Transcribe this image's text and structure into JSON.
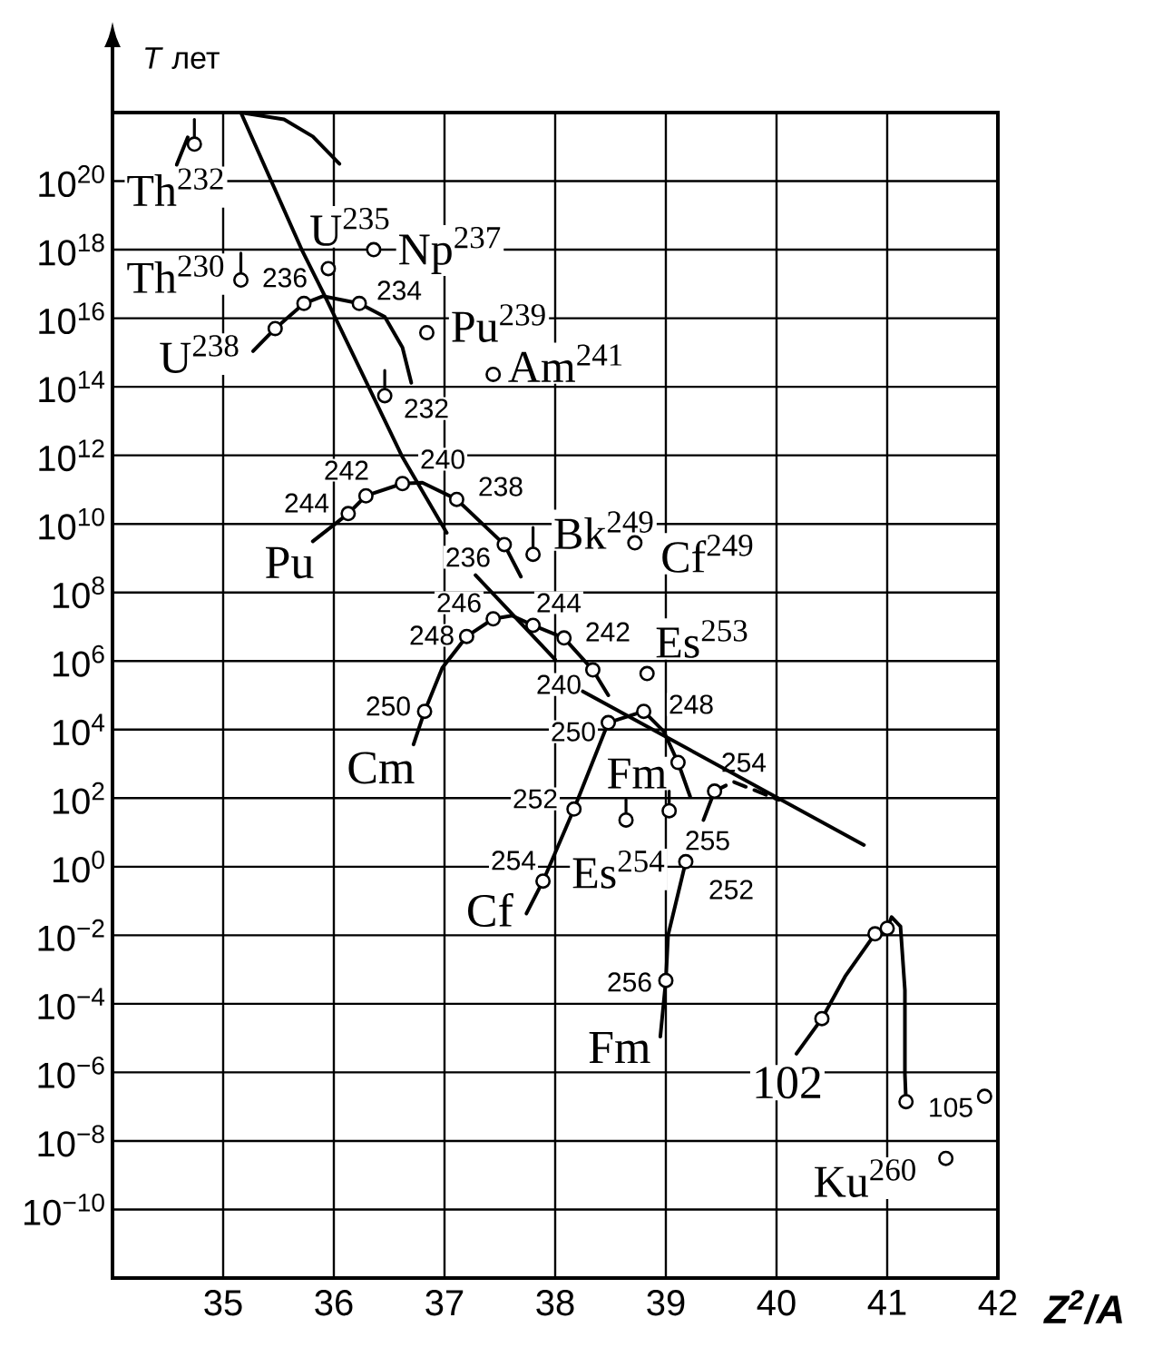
{
  "chart_data": {
    "type": "line",
    "xlabel": "Z$^{2}$/A",
    "ylabel": "*T* лет",
    "xlim": [
      34,
      42
    ],
    "xticks": [
      35,
      36,
      37,
      38,
      39,
      40,
      41,
      42
    ],
    "ylim": [
      1e-12,
      1e+22
    ],
    "yticks": [
      {
        "value": 1e-10,
        "label": "10$^{−10}$"
      },
      {
        "value": 1e-08,
        "label": "10$^{−8}$"
      },
      {
        "value": 1e-06,
        "label": "10$^{−6}$"
      },
      {
        "value": 0.0001,
        "label": "10$^{−4}$"
      },
      {
        "value": 0.01,
        "label": "10$^{−2}$"
      },
      {
        "value": 1,
        "label": "10$^{0}$"
      },
      {
        "value": 100.0,
        "label": "10$^{2}$"
      },
      {
        "value": 10000.0,
        "label": "10$^{4}$"
      },
      {
        "value": 1000000.0,
        "label": "10$^{6}$"
      },
      {
        "value": 100000000.0,
        "label": "10$^{8}$"
      },
      {
        "value": 10000000000.0,
        "label": "10$^{10}$"
      },
      {
        "value": 1000000000000.0,
        "label": "10$^{12}$"
      },
      {
        "value": 100000000000000.0,
        "label": "10$^{14}$"
      },
      {
        "value": 1e+16,
        "label": "10$^{16}$"
      },
      {
        "value": 1e+18,
        "label": "10$^{18}$"
      },
      {
        "value": 1e+20,
        "label": "10$^{20}$"
      }
    ],
    "log": "y",
    "grid": true,
    "series": [
      {
        "color": "#000000",
        "x": [
          35.16,
          35.71,
          35.92,
          36.62,
          37.02,
          37.15,
          37.28,
          38.0,
          38.12,
          38.25,
          40.79
        ],
        "values": [
          1e+22,
          1e+18,
          4.4e+16,
          890000000000.0,
          5500000000.0,
          null,
          320000000.0,
          1100000.0,
          null,
          130000.0,
          4.3
        ]
      },
      {
        "color": "#000000",
        "x": [
          34.58,
          34.68,
          34.9,
          35.16,
          35.55,
          35.81,
          36.05
        ],
        "values": [
          3e+20,
          1.9e+21,
          null,
          1e+22,
          6.3e+21,
          2e+21,
          3.2e+20
        ]
      },
      {
        "color": "#000000",
        "x": [
          35.27,
          35.47,
          35.73,
          35.9,
          36.23,
          36.46,
          36.62,
          36.7
        ],
        "values": [
          1100000000000000.0,
          5000000000000000.0,
          2.7e+16,
          4.4e+16,
          2.7e+16,
          1.1e+16,
          1400000000000000.0,
          130000000000000.0
        ]
      },
      {
        "name": "Pu",
        "color": "#000000",
        "x": [
          35.81,
          36.13,
          36.29,
          36.62,
          36.8,
          37.11,
          37.54,
          37.69
        ],
        "values": [
          3100000000.0,
          20000000000.0,
          66000000000.0,
          150000000000.0,
          160000000000.0,
          52000000000.0,
          2500000000.0,
          290000000.0
        ]
      },
      {
        "name": "Cm",
        "color": "#000000",
        "x": [
          36.72,
          36.82,
          36.98,
          37.2,
          37.44,
          37.61,
          37.8,
          38.08,
          38.34,
          38.48
        ],
        "values": [
          3700.0,
          34000.0,
          630000.0,
          5200000.0,
          17000000.0,
          21000000.0,
          11000000.0,
          4700000.0,
          550000.0,
          100000.0
        ]
      },
      {
        "name": "Cf",
        "color": "#000000",
        "x": [
          37.74,
          37.89,
          38.17,
          38.48,
          38.8,
          38.98,
          39.11,
          39.22
        ],
        "values": [
          0.043,
          0.38,
          48,
          16000.0,
          34000.0,
          8900.0,
          1100.0,
          110.0
        ]
      },
      {
        "name": "Fm",
        "color": "#000000",
        "x": [
          38.95,
          39.0,
          39.02,
          39.18,
          39.26,
          39.34,
          39.44
        ],
        "values": [
          1.1e-05,
          0.00048,
          0.01,
          1.4,
          null,
          23,
          160.0
        ]
      },
      {
        "line_style": "dashed",
        "color": "#000000",
        "x": [
          39.44,
          39.61,
          40.02
        ],
        "values": [
          160.0,
          300.0,
          89
        ]
      },
      {
        "name": "102",
        "color": "#000000",
        "x": [
          40.18,
          40.41,
          40.62,
          40.89,
          41.0,
          41.04,
          41.12,
          41.16,
          41.16,
          41.17
        ],
        "values": [
          3.5e-06,
          3.7e-05,
          0.00063,
          0.011,
          0.016,
          0.034,
          0.018,
          0.00025,
          8.9e-07,
          1.4e-07
        ]
      },
      {
        "type": "scatter",
        "marker": "circle",
        "color": "#000000",
        "x": [
          35.47,
          35.73,
          35.95,
          36.23,
          36.36,
          36.84,
          37.44,
          36.13,
          36.29,
          36.62,
          37.11,
          37.54,
          38.72,
          36.82,
          37.2,
          37.44,
          37.8,
          38.08,
          38.34,
          38.83,
          37.89,
          38.17,
          38.48,
          38.8,
          39.11,
          39.0,
          39.18,
          39.44,
          40.41,
          40.89,
          41.0,
          41.17,
          41.53,
          41.88
        ],
        "values": [
          5000000000000000.0,
          2.7e+16,
          2.8e+17,
          2.7e+16,
          1e+18,
          3800000000000000.0,
          230000000000000.0,
          20000000000.0,
          66000000000.0,
          150000000000.0,
          52000000000.0,
          2500000000.0,
          2800000000.0,
          34000.0,
          5200000.0,
          17000000.0,
          11000000.0,
          4700000.0,
          550000.0,
          430000.0,
          0.38,
          48,
          16000.0,
          34000.0,
          1100.0,
          0.00048,
          1.4,
          160.0,
          3.7e-05,
          0.011,
          0.016,
          1.4e-07,
          3.1e-09,
          2e-07
        ]
      },
      {
        "type": "scatter",
        "marker": "circle",
        "color": "#000000",
        "x": [
          34.74,
          35.16,
          36.46,
          37.8,
          38.64,
          39.03
        ],
        "values": [
          1.2e+21,
          1.3e+17,
          55000000000000.0,
          1300000000.0,
          23,
          43
        ],
        "errors": [
          [
            1.2e+21,
            6.3e+21
          ],
          [
            1.3e+17,
            7.9e+17
          ],
          [
            55000000000000.0,
            300000000000000.0
          ],
          [
            1300000000.0,
            7900000000.0
          ],
          [
            23,
            89
          ],
          [
            43,
            160
          ]
        ]
      }
    ],
    "annotations": [
      "Th$^{232}$",
      "Th$^{230}$",
      "U$^{235}$",
      "Np$^{237}$",
      "U$^{238}$",
      "Pu$^{239}$",
      "Am$^{241}$",
      "Bk$^{249}$",
      "Cf$^{249}$",
      "Es$^{253}$",
      "Es$^{254}$",
      "Ku$^{260}$",
      "Fm",
      "236",
      "234",
      "232",
      "244",
      "242",
      "240",
      "238",
      "236",
      "246",
      "248",
      "250",
      "244",
      "242",
      "240",
      "254",
      "252",
      "250",
      "248",
      "254",
      "255",
      "252",
      "256",
      "105"
    ]
  }
}
